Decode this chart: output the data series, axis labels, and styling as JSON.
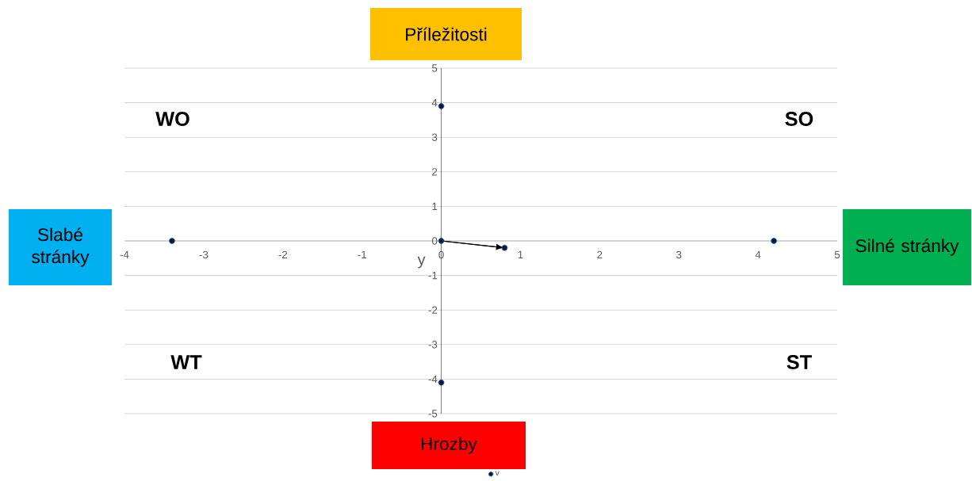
{
  "chart_data": {
    "type": "scatter",
    "ylabel": "y",
    "xlim": [
      -4,
      5
    ],
    "ylim": [
      -5,
      5
    ],
    "xticks": [
      -4,
      -3,
      -2,
      -1,
      0,
      1,
      2,
      3,
      4,
      5
    ],
    "yticks": [
      -5,
      -4,
      -3,
      -2,
      -1,
      0,
      1,
      2,
      3,
      4,
      5
    ],
    "grid": "y",
    "legend": "bottom",
    "series": [
      {
        "type": "line",
        "color": "#000000",
        "x": [
          0,
          0.8
        ],
        "values": [
          0,
          -0.2
        ],
        "marker": "none"
      },
      {
        "name": "v",
        "type": "scatter",
        "marker": "circle",
        "color": "#0b1b3f",
        "x": [
          0,
          -3.4,
          4.2,
          0,
          0,
          0.8
        ],
        "values": [
          3.9,
          0,
          0,
          -4.1,
          0,
          -0.2
        ]
      }
    ],
    "annotations": [
      "Příležitosti",
      "Hrozby",
      "Slabé stránky",
      "Silné stránky",
      "WO",
      "SO",
      "WT",
      "ST"
    ]
  }
}
